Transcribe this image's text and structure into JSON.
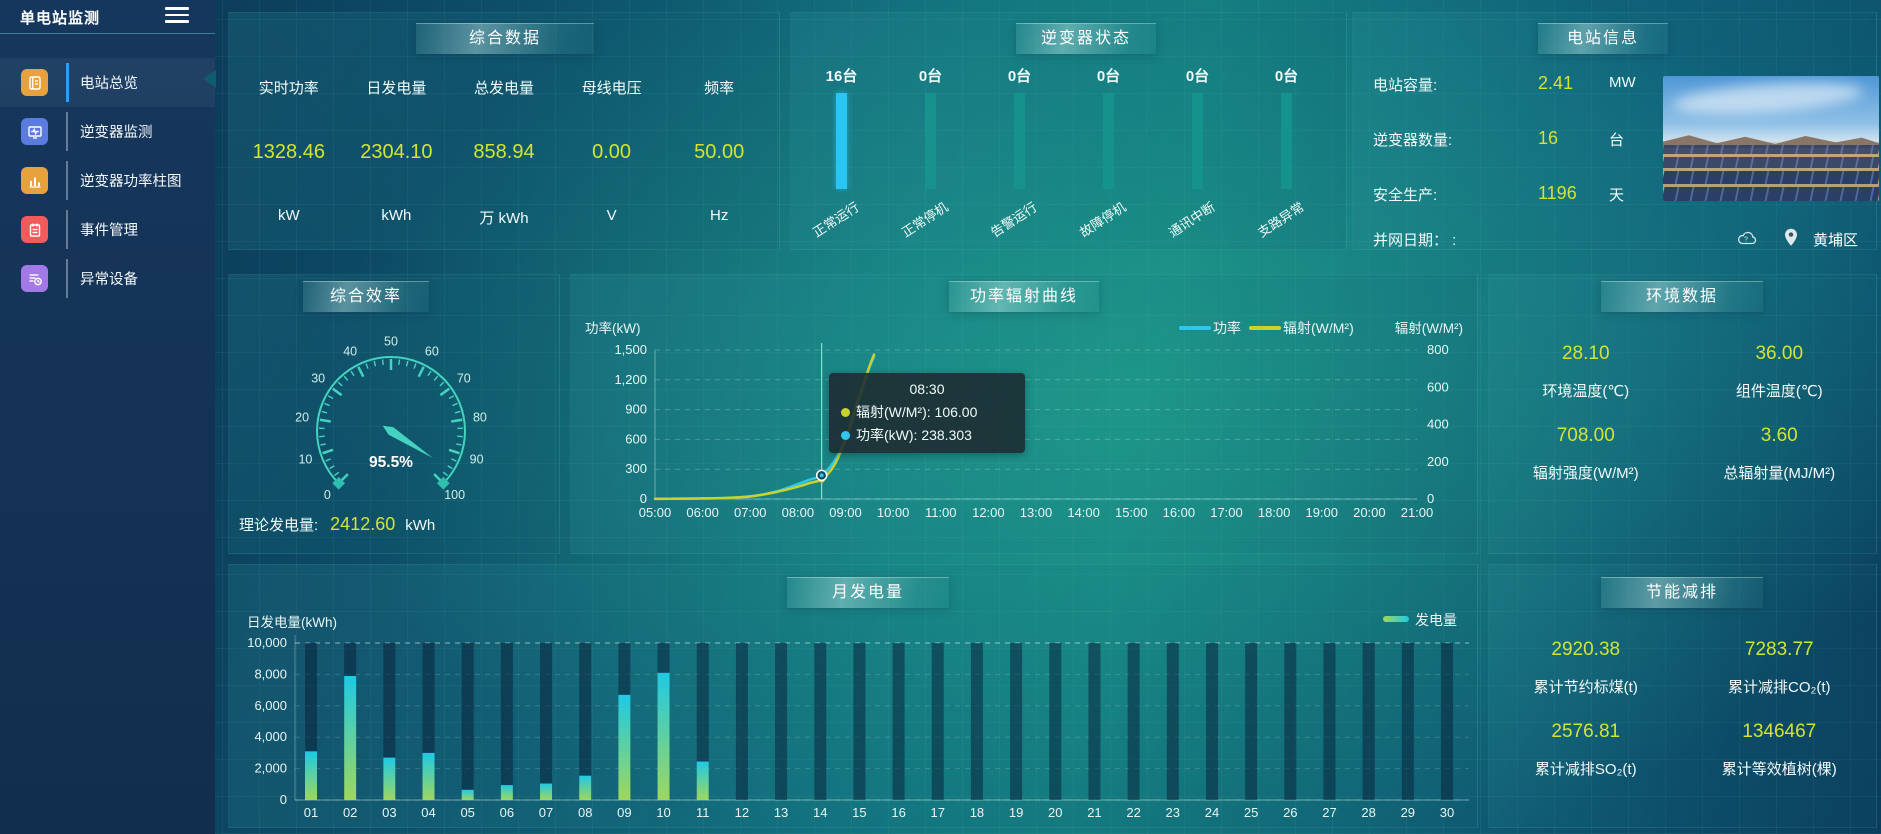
{
  "app": {
    "title": "单电站监测"
  },
  "sidebar": {
    "items": [
      {
        "label": "电站总览",
        "active": true
      },
      {
        "label": "逆变器监测",
        "active": false
      },
      {
        "label": "逆变器功率柱图",
        "active": false
      },
      {
        "label": "事件管理",
        "active": false
      },
      {
        "label": "异常设备",
        "active": false
      }
    ]
  },
  "overview": {
    "title": "综合数据",
    "metrics": [
      {
        "label": "实时功率",
        "value": "1328.46",
        "unit": "kW"
      },
      {
        "label": "日发电量",
        "value": "2304.10",
        "unit": "kWh"
      },
      {
        "label": "总发电量",
        "value": "858.94",
        "unit": "万 kWh"
      },
      {
        "label": "母线电压",
        "value": "0.00",
        "unit": "V"
      },
      {
        "label": "频率",
        "value": "50.00",
        "unit": "Hz"
      }
    ]
  },
  "inverter": {
    "title": "逆变器状态",
    "items": [
      {
        "count": "16台",
        "label": "正常运行"
      },
      {
        "count": "0台",
        "label": "正常停机"
      },
      {
        "count": "0台",
        "label": "告警运行"
      },
      {
        "count": "0台",
        "label": "故障停机"
      },
      {
        "count": "0台",
        "label": "通讯中断"
      },
      {
        "count": "0台",
        "label": "支路异常"
      }
    ]
  },
  "station": {
    "title": "电站信息",
    "rows": [
      {
        "label": "电站容量:",
        "value": "2.41",
        "unit": "MW"
      },
      {
        "label": "逆变器数量:",
        "value": "16",
        "unit": "台"
      },
      {
        "label": "安全生产:",
        "value": "1196",
        "unit": "天"
      },
      {
        "label": "并网日期：  :",
        "value": "",
        "unit": ""
      }
    ],
    "location": "黄埔区",
    "cloud_mark": "?"
  },
  "efficiency": {
    "title": "综合效率",
    "theory_label": "理论发电量:",
    "theory_value": "2412.60",
    "theory_unit": "kWh"
  },
  "env": {
    "title": "环境数据",
    "items": [
      {
        "value": "28.10",
        "label": "环境温度(℃)"
      },
      {
        "value": "36.00",
        "label": "组件温度(℃)"
      },
      {
        "value": "708.00",
        "label": "辐射强度(W/M²)"
      },
      {
        "value": "3.60",
        "label": "总辐射量(MJ/M²)"
      }
    ]
  },
  "savings": {
    "title": "节能减排",
    "items": [
      {
        "value": "2920.38",
        "label": "累计节约标煤(t)"
      },
      {
        "value": "7283.77",
        "label": "累计减排CO₂(t)"
      },
      {
        "value": "2576.81",
        "label": "累计减排SO₂(t)"
      },
      {
        "value": "1346467",
        "label": "累计等效植树(棵)"
      }
    ]
  },
  "chart_data": [
    {
      "id": "power_radiation",
      "type": "line",
      "title": "功率辐射曲线",
      "x_hours": [
        5,
        5.5,
        6,
        6.5,
        7,
        7.5,
        8,
        8.25,
        8.5,
        8.75,
        9,
        9.25,
        9.5,
        9.6
      ],
      "series": [
        {
          "name": "功率",
          "color": "#2fc6f2",
          "yaxis": "left",
          "values": [
            2,
            3,
            5,
            10,
            25,
            70,
            150,
            195,
            238.303,
            370,
            600,
            950,
            1320,
            1430
          ]
        },
        {
          "name": "辐射(W/M²)",
          "color": "#c9d32c",
          "yaxis": "right",
          "values": [
            1,
            2,
            3,
            6,
            14,
            35,
            66,
            86,
            106,
            175,
            320,
            520,
            710,
            775
          ]
        }
      ],
      "left_axis": {
        "title": "功率(kW)",
        "ticks": [
          "1,500",
          "1,200",
          "900",
          "600",
          "300",
          "0"
        ],
        "max": 1500
      },
      "right_axis": {
        "title": "辐射(W/M²)",
        "ticks": [
          "800",
          "600",
          "400",
          "200",
          "0"
        ],
        "max": 800
      },
      "x_labels": [
        "05:00",
        "06:00",
        "07:00",
        "08:00",
        "09:00",
        "10:00",
        "11:00",
        "12:00",
        "13:00",
        "14:00",
        "15:00",
        "16:00",
        "17:00",
        "18:00",
        "19:00",
        "20:00",
        "21:00"
      ],
      "x_range": [
        5,
        21
      ],
      "legend_position": "top-right",
      "grid": "dashed",
      "tooltip": {
        "time": "08:30",
        "x_hour": 8.5,
        "rows": [
          {
            "color": "#c9d32c",
            "text": "辐射(W/M²): 106.00"
          },
          {
            "color": "#2fc6f2",
            "text": "功率(kW): 238.303"
          }
        ]
      }
    },
    {
      "id": "monthly_energy",
      "type": "bar",
      "title": "月发电量",
      "ylabel": "日发电量(kWh)",
      "ylim": [
        0,
        10000
      ],
      "y_ticks": [
        "10,000",
        "8,000",
        "6,000",
        "4,000",
        "2,000",
        "0"
      ],
      "categories": [
        "01",
        "02",
        "03",
        "04",
        "05",
        "06",
        "07",
        "08",
        "09",
        "10",
        "11",
        "12",
        "13",
        "14",
        "15",
        "16",
        "17",
        "18",
        "19",
        "20",
        "21",
        "22",
        "23",
        "24",
        "25",
        "26",
        "27",
        "28",
        "29",
        "30"
      ],
      "values": [
        3100,
        7900,
        2700,
        3000,
        650,
        950,
        1050,
        1550,
        6700,
        8100,
        2450,
        0,
        0,
        0,
        0,
        0,
        0,
        0,
        0,
        0,
        0,
        0,
        0,
        0,
        0,
        0,
        0,
        0,
        0,
        0
      ],
      "legend": "发电量",
      "legend_position": "top-right",
      "bar_gradient_bottom": "#9ed75f",
      "bar_gradient_top": "#1fc9e4"
    },
    {
      "id": "inverter_status",
      "type": "bar",
      "title": "逆变器状态",
      "categories": [
        "正常运行",
        "正常停机",
        "告警运行",
        "故障停机",
        "通讯中断",
        "支路异常"
      ],
      "values": [
        16,
        0,
        0,
        0,
        0,
        0
      ],
      "unit": "台",
      "bar_color_active": "#2bc5f4",
      "bar_color_idle": "#17948e"
    },
    {
      "id": "efficiency_gauge",
      "type": "gauge",
      "title": "综合效率",
      "value": 95.5,
      "display": "95.5%",
      "min": 0,
      "max": 100,
      "tick_step": 10,
      "color": "#45d3c0"
    }
  ]
}
